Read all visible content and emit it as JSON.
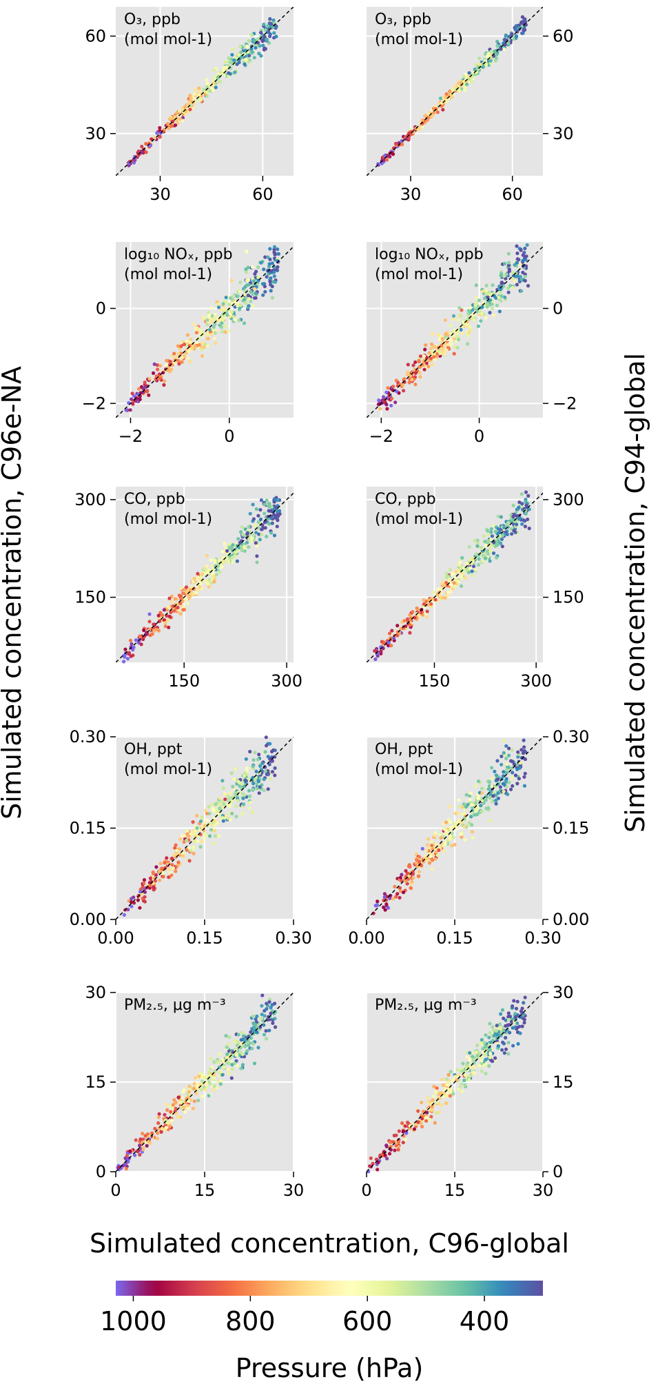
{
  "figure": {
    "ylabel_left": "Simulated concentration, C96e-NA",
    "ylabel_right": "Simulated concentration, C94-global",
    "xlabel": "Simulated concentration, C96-global"
  },
  "colorbar": {
    "label": "Pressure (hPa)",
    "ticks": [
      1000,
      800,
      600,
      400
    ],
    "range": [
      1000,
      300
    ],
    "colormap": [
      "#7b68ee",
      "#9e0142",
      "#d53e4f",
      "#f46d43",
      "#fdae61",
      "#fee08b",
      "#ffffbf",
      "#e6f598",
      "#abdda4",
      "#66c2a5",
      "#3288bd",
      "#5e4fa2"
    ]
  },
  "chart_data": [
    {
      "type": "scatter",
      "row": 1,
      "column": "left",
      "label": "O₃, ppb (mol mol-1)",
      "xlim": [
        17,
        69
      ],
      "ylim": [
        17,
        69
      ],
      "xticks": [
        30,
        60
      ],
      "yticks": [
        30,
        60
      ],
      "tick_labels": [
        "30",
        "60"
      ],
      "points_range": [
        20,
        64
      ],
      "spread": 1.5,
      "yaxis_side": "left"
    },
    {
      "type": "scatter",
      "row": 1,
      "column": "right",
      "label": "O₃, ppb (mol mol-1)",
      "xlim": [
        17,
        69
      ],
      "ylim": [
        17,
        69
      ],
      "xticks": [
        30,
        60
      ],
      "yticks": [
        30,
        60
      ],
      "tick_labels": [
        "30",
        "60"
      ],
      "points_range": [
        20,
        64
      ],
      "spread": 1.0,
      "yaxis_side": "right"
    },
    {
      "type": "scatter",
      "row": 2,
      "column": "left",
      "label": "log₁₀ NOₓ, ppb (mol mol-1)",
      "xlim": [
        -2.3,
        1.3
      ],
      "ylim": [
        -2.3,
        1.4
      ],
      "xticks": [
        -2,
        0
      ],
      "yticks": [
        -2,
        0
      ],
      "tick_labels": [
        "−2",
        "0"
      ],
      "points_range": [
        -2.1,
        1.0
      ],
      "spread": 0.2,
      "yaxis_side": "left"
    },
    {
      "type": "scatter",
      "row": 2,
      "column": "right",
      "label": "log₁₀ NOₓ, ppb (mol mol-1)",
      "xlim": [
        -2.3,
        1.3
      ],
      "ylim": [
        -2.3,
        1.4
      ],
      "xticks": [
        -2,
        0
      ],
      "yticks": [
        -2,
        0
      ],
      "tick_labels": [
        "−2",
        "0"
      ],
      "points_range": [
        -2.1,
        1.0
      ],
      "spread": 0.2,
      "yaxis_side": "right"
    },
    {
      "type": "scatter",
      "row": 3,
      "column": "left",
      "label": "CO, ppb (mol mol-1)",
      "xlim": [
        50,
        310
      ],
      "ylim": [
        50,
        320
      ],
      "xticks": [
        150,
        300
      ],
      "yticks": [
        150,
        300
      ],
      "tick_labels": [
        "150",
        "300"
      ],
      "points_range": [
        60,
        290
      ],
      "spread": 12,
      "yaxis_side": "left"
    },
    {
      "type": "scatter",
      "row": 3,
      "column": "right",
      "label": "CO, ppb (mol mol-1)",
      "xlim": [
        50,
        310
      ],
      "ylim": [
        50,
        320
      ],
      "xticks": [
        150,
        300
      ],
      "yticks": [
        150,
        300
      ],
      "tick_labels": [
        "150",
        "300"
      ],
      "points_range": [
        60,
        290
      ],
      "spread": 12,
      "yaxis_side": "right"
    },
    {
      "type": "scatter",
      "row": 4,
      "column": "left",
      "label": "OH, ppt (mol mol-1)",
      "xlim": [
        0,
        0.3
      ],
      "ylim": [
        0,
        0.3
      ],
      "xticks": [
        0,
        0.15,
        0.3
      ],
      "yticks": [
        0,
        0.15,
        0.3
      ],
      "tick_labels": [
        "0.00",
        "0.15",
        "0.30"
      ],
      "points_range": [
        0.01,
        0.27
      ],
      "spread": 0.018,
      "yaxis_side": "left"
    },
    {
      "type": "scatter",
      "row": 4,
      "column": "right",
      "label": "OH, ppt (mol mol-1)",
      "xlim": [
        0,
        0.3
      ],
      "ylim": [
        0,
        0.3
      ],
      "xticks": [
        0,
        0.15,
        0.3
      ],
      "yticks": [
        0,
        0.15,
        0.3
      ],
      "tick_labels": [
        "0.00",
        "0.15",
        "0.30"
      ],
      "points_range": [
        0.01,
        0.27
      ],
      "spread": 0.018,
      "yaxis_side": "right"
    },
    {
      "type": "scatter",
      "row": 5,
      "column": "left",
      "label": "PM₂.₅, μg m⁻³",
      "xlim": [
        0,
        30
      ],
      "ylim": [
        0,
        30
      ],
      "xticks": [
        0,
        15,
        30
      ],
      "yticks": [
        0,
        15,
        30
      ],
      "tick_labels": [
        "0",
        "15",
        "30"
      ],
      "points_range": [
        0.2,
        27
      ],
      "spread": 1.5,
      "yaxis_side": "left"
    },
    {
      "type": "scatter",
      "row": 5,
      "column": "right",
      "label": "PM₂.₅, μg m⁻³",
      "xlim": [
        0,
        30
      ],
      "ylim": [
        0,
        30
      ],
      "xticks": [
        0,
        15,
        30
      ],
      "yticks": [
        0,
        15,
        30
      ],
      "tick_labels": [
        "0",
        "15",
        "30"
      ],
      "points_range": [
        0.2,
        27
      ],
      "spread": 1.5,
      "yaxis_side": "right"
    }
  ]
}
